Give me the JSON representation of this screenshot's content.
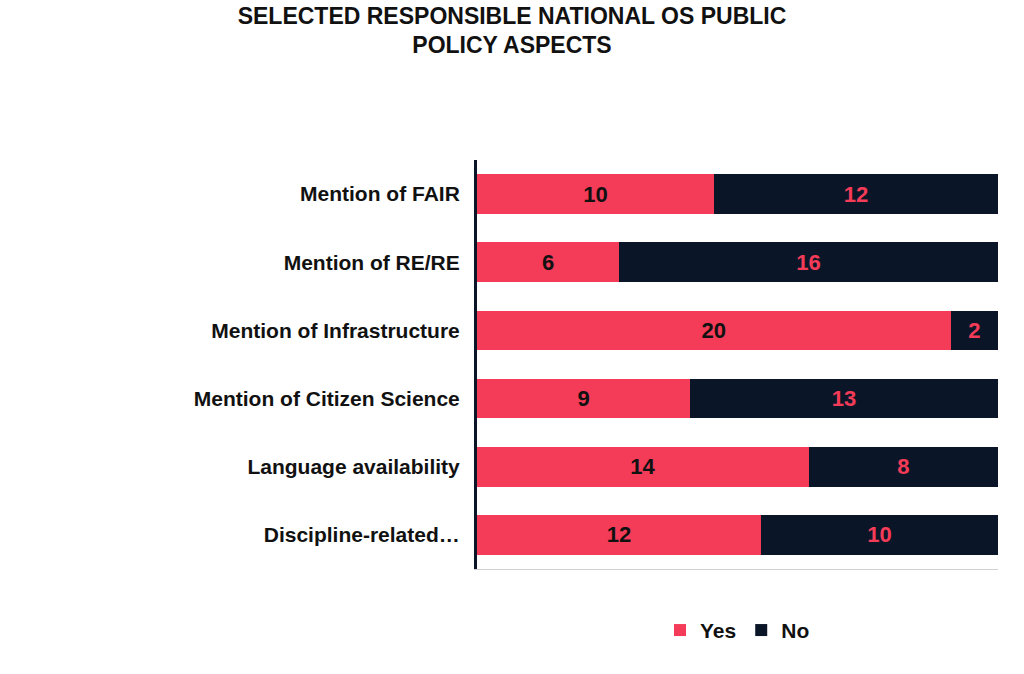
{
  "chart_data": {
    "type": "bar",
    "title": "SELECTED RESPONSIBLE NATIONAL OS PUBLIC\nPOLICY ASPECTS",
    "orientation": "horizontal",
    "stacked": true,
    "data_labels": true,
    "categories": [
      "Mention of FAIR",
      "Mention of RE/RE",
      "Mention of Infrastructure",
      "Mention of Citizen Science",
      "Language availability",
      "Discipline-related…"
    ],
    "series": [
      {
        "name": "Yes",
        "color": "#f43b58",
        "values": [
          10,
          6,
          20,
          9,
          14,
          12
        ]
      },
      {
        "name": "No",
        "color": "#0a1628",
        "values": [
          12,
          16,
          2,
          13,
          8,
          10
        ]
      }
    ],
    "xlim": [
      0,
      22
    ],
    "xticks": [],
    "tick_labels": "y",
    "legend": "bottom",
    "grid": false
  }
}
